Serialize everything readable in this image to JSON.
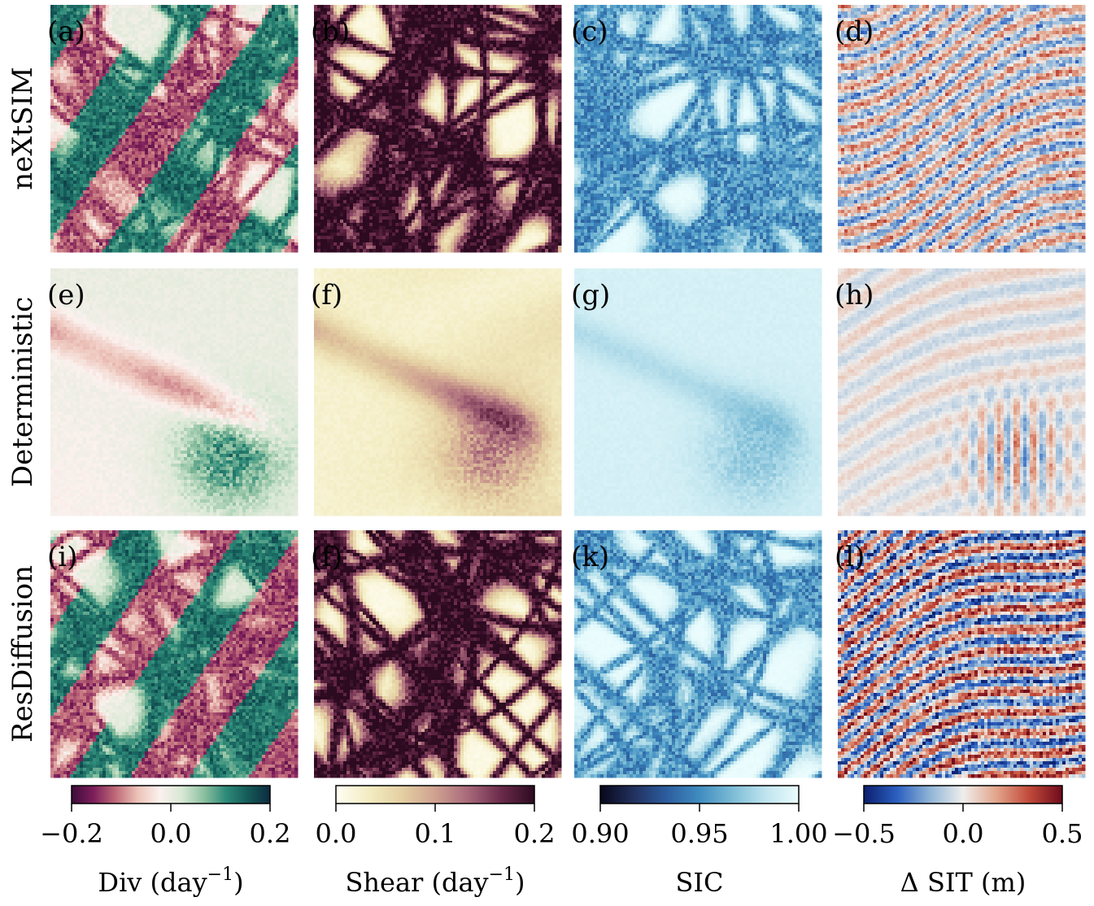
{
  "chart_data": {
    "type": "heatmap",
    "rows": [
      {
        "label": "neXtSIM"
      },
      {
        "label": "Deterministic"
      },
      {
        "label": "ResDiffusion"
      }
    ],
    "columns": [
      {
        "variable": "div",
        "colormap": "curl (purple-white-green)",
        "vmin": -0.2,
        "vmax": 0.2,
        "ticks": [
          "−0.2",
          "0.0",
          "0.2"
        ],
        "label": "Div (day",
        "label_sup": "−1",
        "label_tail": ")",
        "stops": [
          "#3b0c3a",
          "#7d1e5a",
          "#c06a78",
          "#ecc2b8",
          "#fbf1ee",
          "#d8e8d4",
          "#8cc0a0",
          "#2d8a78",
          "#145a58",
          "#0d2b40"
        ]
      },
      {
        "variable": "shear",
        "colormap": "pink-brown",
        "vmin": 0.0,
        "vmax": 0.2,
        "ticks": [
          "0.0",
          "0.1",
          "0.2"
        ],
        "label": "Shear (day",
        "label_sup": "−1",
        "label_tail": ")",
        "stops": [
          "#fffef2",
          "#f3ecc2",
          "#e4cfa2",
          "#cfa190",
          "#a8687a",
          "#6a2a4a",
          "#2c0a20"
        ]
      },
      {
        "variable": "sic",
        "colormap": "ice",
        "vmin": 0.9,
        "vmax": 1.0,
        "ticks": [
          "0.90",
          "0.95",
          "1.00"
        ],
        "label": "SIC",
        "label_sup": "",
        "label_tail": "",
        "stops": [
          "#08071a",
          "#22305e",
          "#2c5d9e",
          "#3f8cc0",
          "#7cbcd6",
          "#bfe4ee",
          "#eafcfd"
        ]
      },
      {
        "variable": "dsit",
        "colormap": "blue-white-red",
        "vmin": -0.5,
        "vmax": 0.5,
        "ticks": [
          "−0.5",
          "0.0",
          "0.5"
        ],
        "label": "Δ SIT (m)",
        "label_sup": "",
        "label_tail": "",
        "stops": [
          "#0c1f6e",
          "#2b5fc0",
          "#8fb4d6",
          "#efeeed",
          "#e2a58c",
          "#c24a3a",
          "#6e0a1c"
        ]
      }
    ],
    "panels": [
      {
        "id": "a",
        "label": "(a)",
        "row": 0,
        "col": 0
      },
      {
        "id": "b",
        "label": "(b)",
        "row": 0,
        "col": 1
      },
      {
        "id": "c",
        "label": "(c)",
        "row": 0,
        "col": 2
      },
      {
        "id": "d",
        "label": "(d)",
        "row": 0,
        "col": 3
      },
      {
        "id": "e",
        "label": "(e)",
        "row": 1,
        "col": 0
      },
      {
        "id": "f",
        "label": "(f)",
        "row": 1,
        "col": 1
      },
      {
        "id": "g",
        "label": "(g)",
        "row": 1,
        "col": 2
      },
      {
        "id": "h",
        "label": "(h)",
        "row": 1,
        "col": 3
      },
      {
        "id": "i",
        "label": "(i)",
        "row": 2,
        "col": 0
      },
      {
        "id": "j",
        "label": "(f)",
        "row": 2,
        "col": 1
      },
      {
        "id": "k",
        "label": "(k)",
        "row": 2,
        "col": 2
      },
      {
        "id": "l",
        "label": "(l)",
        "row": 2,
        "col": 3
      }
    ]
  }
}
